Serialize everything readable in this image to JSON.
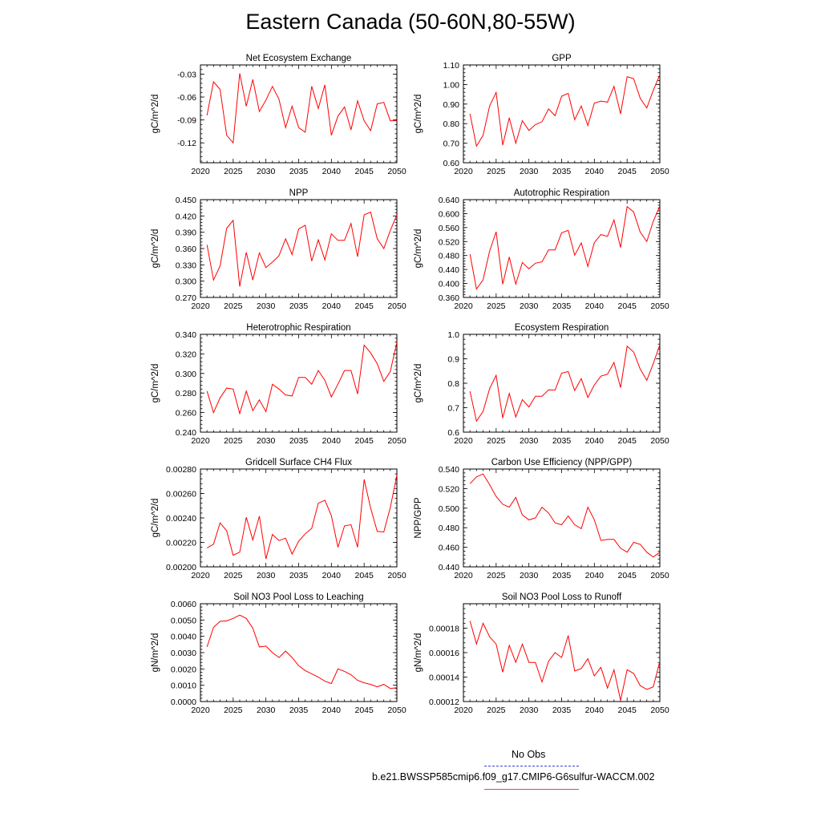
{
  "page": {
    "title": "Eastern Canada (50-60N,80-55W)",
    "line_color": "#ff0000"
  },
  "legend": {
    "obs_label": "No Obs",
    "obs_color": "#3b3bd6",
    "run_label": "b.e21.BWSSP585cmip6.f09_g17.CMIP6-G6sulfur-WACCM.002",
    "run_color": "#e8474c"
  },
  "chart_data": [
    {
      "type": "line",
      "title": "Net Ecosystem Exchange",
      "ylabel": "gC/m^2/d",
      "xlim": [
        2020,
        2050
      ],
      "ylim": [
        -0.146,
        -0.018
      ],
      "xticks": [
        2020,
        2025,
        2030,
        2035,
        2040,
        2045,
        2050
      ],
      "yticks": [
        "-0.03",
        "-0.06",
        "-0.09",
        "-0.12"
      ],
      "x": [
        2021,
        2022,
        2023,
        2024,
        2025,
        2026,
        2027,
        2028,
        2029,
        2030,
        2031,
        2032,
        2033,
        2034,
        2035,
        2036,
        2037,
        2038,
        2039,
        2040,
        2041,
        2042,
        2043,
        2044,
        2045,
        2046,
        2047,
        2048,
        2049,
        2050
      ],
      "y": [
        -0.084,
        -0.04,
        -0.05,
        -0.11,
        -0.12,
        -0.029,
        -0.072,
        -0.037,
        -0.079,
        -0.064,
        -0.046,
        -0.063,
        -0.1,
        -0.072,
        -0.1,
        -0.106,
        -0.046,
        -0.075,
        -0.044,
        -0.11,
        -0.085,
        -0.073,
        -0.103,
        -0.065,
        -0.091,
        -0.104,
        -0.069,
        -0.067,
        -0.091,
        -0.091
      ]
    },
    {
      "type": "line",
      "title": "GPP",
      "ylabel": "gC/m^2/d",
      "xlim": [
        2020,
        2050
      ],
      "ylim": [
        0.6,
        1.1
      ],
      "xticks": [
        2020,
        2025,
        2030,
        2035,
        2040,
        2045,
        2050
      ],
      "yticks": [
        "0.60",
        "0.70",
        "0.80",
        "0.90",
        "1.00",
        "1.10"
      ],
      "x": [
        2021,
        2022,
        2023,
        2024,
        2025,
        2026,
        2027,
        2028,
        2029,
        2030,
        2031,
        2032,
        2033,
        2034,
        2035,
        2036,
        2037,
        2038,
        2039,
        2040,
        2041,
        2042,
        2043,
        2044,
        2045,
        2046,
        2047,
        2048,
        2049,
        2050
      ],
      "y": [
        0.85,
        0.685,
        0.74,
        0.89,
        0.96,
        0.69,
        0.83,
        0.7,
        0.815,
        0.765,
        0.795,
        0.81,
        0.875,
        0.84,
        0.94,
        0.955,
        0.82,
        0.89,
        0.79,
        0.905,
        0.915,
        0.91,
        0.99,
        0.85,
        1.04,
        1.03,
        0.93,
        0.88,
        0.97,
        1.05
      ]
    },
    {
      "type": "line",
      "title": "NPP",
      "ylabel": "gC/m^2/d",
      "xlim": [
        2020,
        2050
      ],
      "ylim": [
        0.27,
        0.45
      ],
      "xticks": [
        2020,
        2025,
        2030,
        2035,
        2040,
        2045,
        2050
      ],
      "yticks": [
        "0.270",
        "0.300",
        "0.330",
        "0.360",
        "0.390",
        "0.420",
        "0.450"
      ],
      "x": [
        2021,
        2022,
        2023,
        2024,
        2025,
        2026,
        2027,
        2028,
        2029,
        2030,
        2031,
        2032,
        2033,
        2034,
        2035,
        2036,
        2037,
        2038,
        2039,
        2040,
        2041,
        2042,
        2043,
        2044,
        2045,
        2046,
        2047,
        2048,
        2049,
        2050
      ],
      "y": [
        0.367,
        0.302,
        0.328,
        0.397,
        0.412,
        0.29,
        0.353,
        0.302,
        0.352,
        0.325,
        0.335,
        0.347,
        0.378,
        0.349,
        0.396,
        0.403,
        0.337,
        0.376,
        0.339,
        0.387,
        0.375,
        0.375,
        0.406,
        0.345,
        0.422,
        0.427,
        0.378,
        0.36,
        0.393,
        0.422
      ]
    },
    {
      "type": "line",
      "title": "Autotrophic Respiration",
      "ylabel": "gC/m^2/d",
      "xlim": [
        2020,
        2050
      ],
      "ylim": [
        0.36,
        0.64
      ],
      "xticks": [
        2020,
        2025,
        2030,
        2035,
        2040,
        2045,
        2050
      ],
      "yticks": [
        "0.360",
        "0.400",
        "0.440",
        "0.480",
        "0.520",
        "0.560",
        "0.600",
        "0.640"
      ],
      "x": [
        2021,
        2022,
        2023,
        2024,
        2025,
        2026,
        2027,
        2028,
        2029,
        2030,
        2031,
        2032,
        2033,
        2034,
        2035,
        2036,
        2037,
        2038,
        2039,
        2040,
        2041,
        2042,
        2043,
        2044,
        2045,
        2046,
        2047,
        2048,
        2049,
        2050
      ],
      "y": [
        0.484,
        0.384,
        0.41,
        0.493,
        0.548,
        0.398,
        0.476,
        0.398,
        0.46,
        0.442,
        0.458,
        0.462,
        0.496,
        0.496,
        0.545,
        0.552,
        0.481,
        0.516,
        0.449,
        0.517,
        0.54,
        0.535,
        0.582,
        0.503,
        0.62,
        0.605,
        0.547,
        0.52,
        0.578,
        0.622
      ]
    },
    {
      "type": "line",
      "title": "Heterotrophic Respiration",
      "ylabel": "gC/m^2/d",
      "xlim": [
        2020,
        2050
      ],
      "ylim": [
        0.24,
        0.34
      ],
      "xticks": [
        2020,
        2025,
        2030,
        2035,
        2040,
        2045,
        2050
      ],
      "yticks": [
        "0.240",
        "0.260",
        "0.280",
        "0.300",
        "0.320",
        "0.340"
      ],
      "x": [
        2021,
        2022,
        2023,
        2024,
        2025,
        2026,
        2027,
        2028,
        2029,
        2030,
        2031,
        2032,
        2033,
        2034,
        2035,
        2036,
        2037,
        2038,
        2039,
        2040,
        2041,
        2042,
        2043,
        2044,
        2045,
        2046,
        2047,
        2048,
        2049,
        2050
      ],
      "y": [
        0.282,
        0.26,
        0.275,
        0.285,
        0.284,
        0.259,
        0.282,
        0.262,
        0.273,
        0.261,
        0.289,
        0.284,
        0.278,
        0.277,
        0.296,
        0.296,
        0.289,
        0.303,
        0.293,
        0.276,
        0.289,
        0.303,
        0.303,
        0.279,
        0.329,
        0.321,
        0.31,
        0.292,
        0.302,
        0.332
      ]
    },
    {
      "type": "line",
      "title": "Ecosystem Respiration",
      "ylabel": "gC/m^2/d",
      "xlim": [
        2020,
        2050
      ],
      "ylim": [
        0.6,
        1.0
      ],
      "xticks": [
        2020,
        2025,
        2030,
        2035,
        2040,
        2045,
        2050
      ],
      "yticks": [
        "0.6",
        "0.7",
        "0.8",
        "0.9",
        "1.0"
      ],
      "x": [
        2021,
        2022,
        2023,
        2024,
        2025,
        2026,
        2027,
        2028,
        2029,
        2030,
        2031,
        2032,
        2033,
        2034,
        2035,
        2036,
        2037,
        2038,
        2039,
        2040,
        2041,
        2042,
        2043,
        2044,
        2045,
        2046,
        2047,
        2048,
        2049,
        2050
      ],
      "y": [
        0.767,
        0.645,
        0.685,
        0.778,
        0.832,
        0.658,
        0.758,
        0.662,
        0.733,
        0.703,
        0.747,
        0.747,
        0.773,
        0.772,
        0.841,
        0.848,
        0.77,
        0.819,
        0.742,
        0.793,
        0.829,
        0.837,
        0.885,
        0.782,
        0.951,
        0.928,
        0.858,
        0.812,
        0.88,
        0.958
      ]
    },
    {
      "type": "line",
      "title": "Gridcell Surface CH4 Flux",
      "ylabel": "gC/m^2/d",
      "xlim": [
        2020,
        2050
      ],
      "ylim": [
        0.002,
        0.0028
      ],
      "xticks": [
        2020,
        2025,
        2030,
        2035,
        2040,
        2045,
        2050
      ],
      "yticks": [
        "0.00200",
        "0.00220",
        "0.00240",
        "0.00260",
        "0.00280"
      ],
      "x": [
        2021,
        2022,
        2023,
        2024,
        2025,
        2026,
        2027,
        2028,
        2029,
        2030,
        2031,
        2032,
        2033,
        2034,
        2035,
        2036,
        2037,
        2038,
        2039,
        2040,
        2041,
        2042,
        2043,
        2044,
        2045,
        2046,
        2047,
        2048,
        2049,
        2050
      ],
      "y": [
        0.002155,
        0.002185,
        0.00236,
        0.002295,
        0.002095,
        0.00212,
        0.002405,
        0.00222,
        0.002415,
        0.002065,
        0.002265,
        0.002215,
        0.002235,
        0.002105,
        0.00221,
        0.00227,
        0.002315,
        0.00252,
        0.002545,
        0.00242,
        0.00216,
        0.002335,
        0.002345,
        0.00216,
        0.002715,
        0.00248,
        0.00229,
        0.002285,
        0.002485,
        0.00275
      ]
    },
    {
      "type": "line",
      "title": "Carbon Use Efficiency (NPP/GPP)",
      "ylabel": "NPP/GPP",
      "xlim": [
        2020,
        2050
      ],
      "ylim": [
        0.44,
        0.54
      ],
      "xticks": [
        2020,
        2025,
        2030,
        2035,
        2040,
        2045,
        2050
      ],
      "yticks": [
        "0.440",
        "0.460",
        "0.480",
        "0.500",
        "0.520",
        "0.540"
      ],
      "x": [
        2021,
        2022,
        2023,
        2024,
        2025,
        2026,
        2027,
        2028,
        2029,
        2030,
        2031,
        2032,
        2033,
        2034,
        2035,
        2036,
        2037,
        2038,
        2039,
        2040,
        2041,
        2042,
        2043,
        2044,
        2045,
        2046,
        2047,
        2048,
        2049,
        2050
      ],
      "y": [
        0.525,
        0.532,
        0.535,
        0.524,
        0.512,
        0.504,
        0.501,
        0.511,
        0.493,
        0.488,
        0.49,
        0.501,
        0.495,
        0.485,
        0.483,
        0.492,
        0.483,
        0.479,
        0.501,
        0.488,
        0.467,
        0.468,
        0.468,
        0.459,
        0.455,
        0.465,
        0.463,
        0.455,
        0.45,
        0.455
      ]
    },
    {
      "type": "line",
      "title": "Soil NO3 Pool Loss to Leaching",
      "ylabel": "gN/m^2/d",
      "xlim": [
        2020,
        2050
      ],
      "ylim": [
        0.0,
        0.006
      ],
      "xticks": [
        2020,
        2025,
        2030,
        2035,
        2040,
        2045,
        2050
      ],
      "yticks": [
        "0.0000",
        "0.0010",
        "0.0020",
        "0.0030",
        "0.0040",
        "0.0050",
        "0.0060"
      ],
      "x": [
        2021,
        2022,
        2023,
        2024,
        2025,
        2026,
        2027,
        2028,
        2029,
        2030,
        2031,
        2032,
        2033,
        2034,
        2035,
        2036,
        2037,
        2038,
        2039,
        2040,
        2041,
        2042,
        2043,
        2044,
        2045,
        2046,
        2047,
        2048,
        2049,
        2050
      ],
      "y": [
        0.00335,
        0.00455,
        0.00492,
        0.00495,
        0.0051,
        0.0053,
        0.0051,
        0.0045,
        0.00335,
        0.0034,
        0.003,
        0.0027,
        0.0031,
        0.0027,
        0.0022,
        0.0019,
        0.0017,
        0.0015,
        0.00125,
        0.0011,
        0.002,
        0.00185,
        0.00165,
        0.0013,
        0.00115,
        0.00105,
        0.0009,
        0.00105,
        0.0008,
        0.00085
      ]
    },
    {
      "type": "line",
      "title": "Soil NO3 Pool Loss to Runoff",
      "ylabel": "gN/m^2/d",
      "xlim": [
        2020,
        2050
      ],
      "ylim": [
        0.00012,
        0.0002
      ],
      "xticks": [
        2020,
        2025,
        2030,
        2035,
        2040,
        2045,
        2050
      ],
      "yticks": [
        "0.00012",
        "0.00014",
        "0.00016",
        "0.00018"
      ],
      "x": [
        2021,
        2022,
        2023,
        2024,
        2025,
        2026,
        2027,
        2028,
        2029,
        2030,
        2031,
        2032,
        2033,
        2034,
        2035,
        2036,
        2037,
        2038,
        2039,
        2040,
        2041,
        2042,
        2043,
        2044,
        2045,
        2046,
        2047,
        2048,
        2049,
        2050
      ],
      "y": [
        0.000186,
        0.000167,
        0.000184,
        0.000173,
        0.000167,
        0.000144,
        0.000166,
        0.000152,
        0.000167,
        0.000152,
        0.000152,
        0.000136,
        0.000153,
        0.00016,
        0.000156,
        0.000174,
        0.000145,
        0.000147,
        0.000155,
        0.000141,
        0.000148,
        0.000131,
        0.000146,
        0.000121,
        0.000146,
        0.000143,
        0.000133,
        0.00013,
        0.000132,
        0.000153
      ]
    }
  ]
}
